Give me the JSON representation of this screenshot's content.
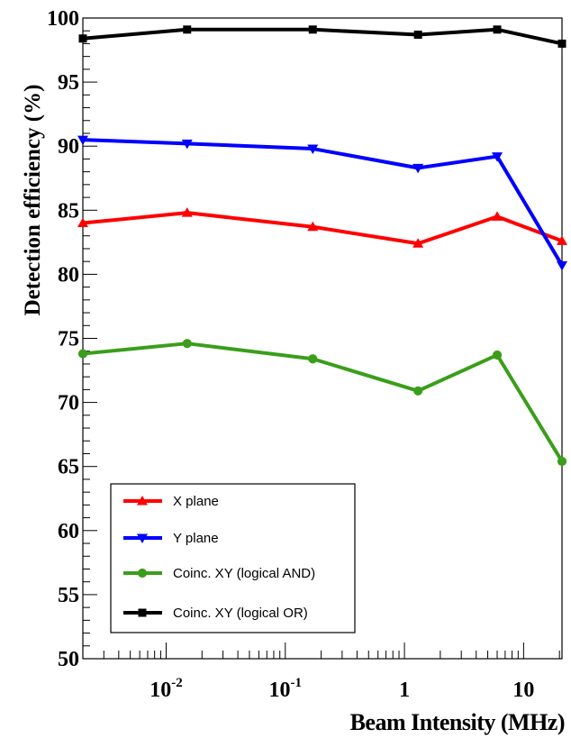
{
  "chart_data": {
    "type": "line",
    "xlabel": "Beam Intensity (MHz)",
    "ylabel": "Detection efficiency (%)",
    "x_scale": "log",
    "xlim": [
      0.002,
      21
    ],
    "ylim": [
      50,
      100
    ],
    "y_ticks": [
      "50",
      "55",
      "60",
      "65",
      "70",
      "75",
      "80",
      "85",
      "90",
      "95",
      "100"
    ],
    "x_ticks": [
      {
        "value": 0.01,
        "base": "10",
        "exp": "-2"
      },
      {
        "value": 0.1,
        "base": "10",
        "exp": "-1"
      },
      {
        "value": 1,
        "base": "1",
        "exp": ""
      },
      {
        "value": 10,
        "base": "10",
        "exp": ""
      }
    ],
    "x": [
      0.002,
      0.015,
      0.17,
      1.3,
      6,
      21
    ],
    "series": [
      {
        "name": "X plane",
        "color": "#ff0000",
        "marker": "triangle-up",
        "values": [
          84.0,
          84.8,
          83.7,
          82.4,
          84.5,
          82.6
        ]
      },
      {
        "name": "Y plane",
        "color": "#0000ff",
        "marker": "triangle-down",
        "values": [
          90.5,
          90.2,
          89.8,
          88.3,
          89.2,
          80.7
        ]
      },
      {
        "name": "Coinc. XY (logical AND)",
        "color": "#3a9e1a",
        "marker": "circle",
        "values": [
          73.8,
          74.6,
          73.4,
          70.9,
          73.7,
          65.4
        ]
      },
      {
        "name": "Coinc. XY (logical OR)",
        "color": "#000000",
        "marker": "square",
        "values": [
          98.4,
          99.1,
          99.1,
          98.7,
          99.1,
          98.0
        ]
      }
    ],
    "grid": false,
    "legend_position": "bottom-left"
  }
}
